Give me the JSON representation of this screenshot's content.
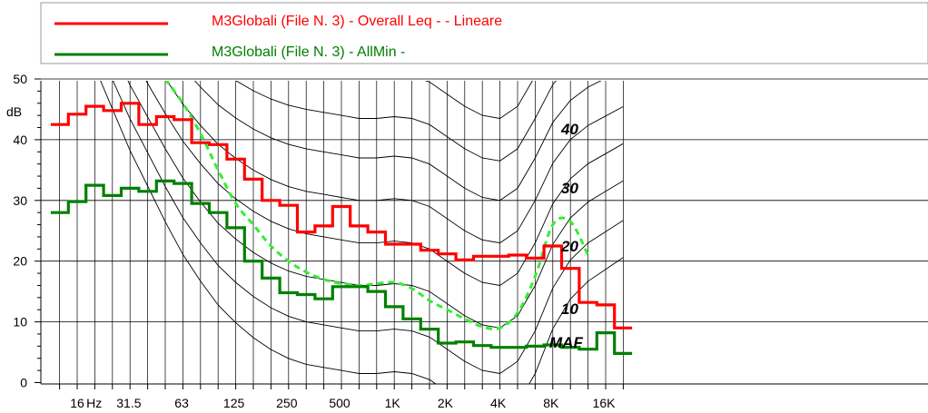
{
  "chart_data": {
    "type": "line",
    "title": "",
    "xlabel": "",
    "ylabel": "dB",
    "ylim": [
      0,
      50
    ],
    "x_scale": "log (third-octave bands)",
    "x_axis_labels": [
      {
        "freq": 16,
        "label": "16"
      },
      {
        "freq": 20,
        "label": "Hz"
      },
      {
        "freq": 31.5,
        "label": "31.5"
      },
      {
        "freq": 63,
        "label": "63"
      },
      {
        "freq": 125,
        "label": "125"
      },
      {
        "freq": 250,
        "label": "250"
      },
      {
        "freq": 500,
        "label": "500"
      },
      {
        "freq": 1000,
        "label": "1K"
      },
      {
        "freq": 2000,
        "label": "2K"
      },
      {
        "freq": 4000,
        "label": "4K"
      },
      {
        "freq": 8000,
        "label": "8K"
      },
      {
        "freq": 16000,
        "label": "16K"
      }
    ],
    "y_ticks": [
      {
        "value": 0,
        "label": "0"
      },
      {
        "value": 10,
        "label": "10"
      },
      {
        "value": 20,
        "label": "20"
      },
      {
        "value": 30,
        "label": "30"
      },
      {
        "value": 40,
        "label": "40"
      },
      {
        "value": 50,
        "label": "50"
      }
    ],
    "bands": [
      12.5,
      16,
      20,
      25,
      31.5,
      40,
      50,
      63,
      80,
      100,
      125,
      160,
      200,
      250,
      315,
      400,
      500,
      630,
      800,
      1000,
      1250,
      1600,
      2000,
      2500,
      3150,
      4000,
      5000,
      6300,
      8000,
      10000,
      12500,
      16000,
      20000
    ],
    "grid": true,
    "legend_position": "top",
    "series": [
      {
        "name": "M3Globali (File N. 3) - Overall Leq -  - Lineare",
        "color": "#ff0000",
        "style": "step",
        "values": [
          42.5,
          44.2,
          45.5,
          44.8,
          46.0,
          42.5,
          43.8,
          43.3,
          39.5,
          39.2,
          36.8,
          33.5,
          30.0,
          29.2,
          24.8,
          25.8,
          29.0,
          25.8,
          24.8,
          22.8,
          22.8,
          21.8,
          21.2,
          20.2,
          20.8,
          20.8,
          21.0,
          20.5,
          22.5,
          18.8,
          13.2,
          12.8,
          9.0
        ]
      },
      {
        "name": "M3Globali (File N. 3) - AllMin -",
        "color": "#008000",
        "style": "step",
        "values": [
          28.0,
          29.8,
          32.5,
          30.8,
          32.0,
          31.5,
          33.2,
          32.8,
          29.5,
          28.0,
          25.5,
          20.0,
          17.2,
          14.8,
          14.5,
          13.8,
          15.8,
          15.8,
          15.0,
          12.5,
          10.5,
          8.8,
          6.5,
          6.7,
          6.1,
          5.8,
          5.8,
          6.0,
          6.2,
          5.8,
          5.5,
          8.2,
          4.8
        ]
      },
      {
        "name": "",
        "color": "#33ee33",
        "style": "dashed-smooth",
        "values": [
          null,
          null,
          null,
          null,
          null,
          null,
          50.0,
          46.0,
          41.0,
          35.0,
          29.5,
          26.0,
          22.5,
          20.0,
          18.2,
          17.0,
          16.3,
          16.0,
          16.3,
          16.5,
          15.5,
          13.5,
          12.0,
          10.5,
          9.2,
          9.0,
          11.5,
          17.5,
          26.0,
          26.5,
          21.0,
          null,
          null
        ]
      }
    ],
    "reference_curves": [
      {
        "label": "MAF"
      },
      {
        "label": "10"
      },
      {
        "label": "20"
      },
      {
        "label": "30"
      },
      {
        "label": "40"
      }
    ]
  }
}
